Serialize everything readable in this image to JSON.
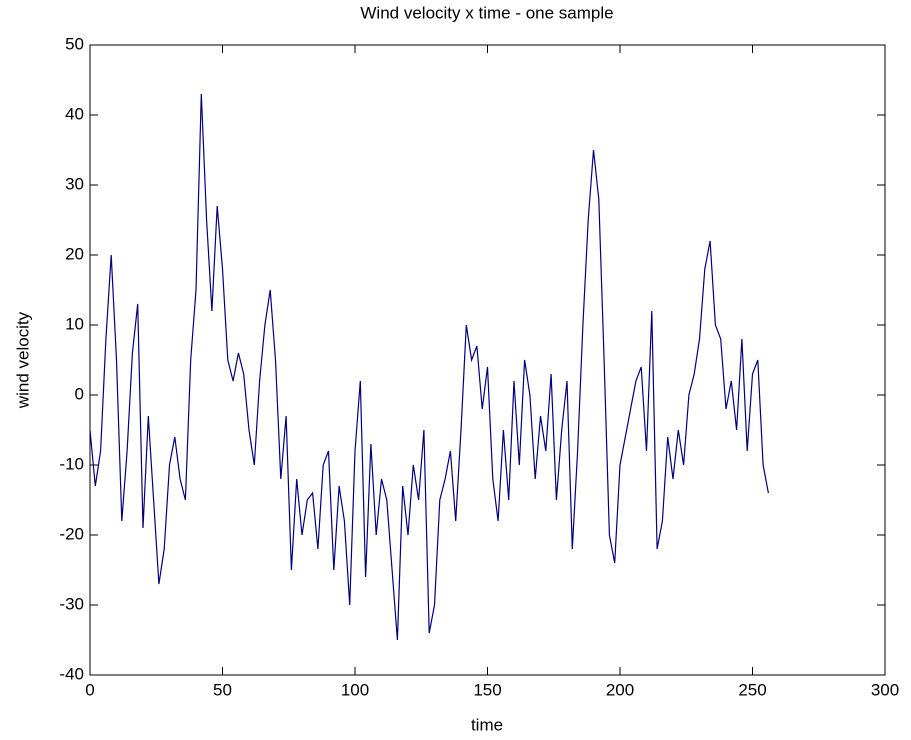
{
  "chart_data": {
    "type": "line",
    "title": "Wind velocity x time - one sample",
    "xlabel": "time",
    "ylabel": "wind velocity",
    "x": [
      0,
      2,
      4,
      6,
      8,
      10,
      12,
      14,
      16,
      18,
      20,
      22,
      24,
      26,
      28,
      30,
      32,
      34,
      36,
      38,
      40,
      42,
      44,
      46,
      48,
      50,
      52,
      54,
      56,
      58,
      60,
      62,
      64,
      66,
      68,
      70,
      72,
      74,
      76,
      78,
      80,
      82,
      84,
      86,
      88,
      90,
      92,
      94,
      96,
      98,
      100,
      102,
      104,
      106,
      108,
      110,
      112,
      114,
      116,
      118,
      120,
      122,
      124,
      126,
      128,
      130,
      132,
      134,
      136,
      138,
      140,
      142,
      144,
      146,
      148,
      150,
      152,
      154,
      156,
      158,
      160,
      162,
      164,
      166,
      168,
      170,
      172,
      174,
      176,
      178,
      180,
      182,
      184,
      186,
      188,
      190,
      192,
      194,
      196,
      198,
      200,
      202,
      204,
      206,
      208,
      210,
      212,
      214,
      216,
      218,
      220,
      222,
      224,
      226,
      228,
      230,
      232,
      234,
      236,
      238,
      240,
      242,
      244,
      246,
      248,
      250,
      252,
      254,
      256
    ],
    "series": [
      {
        "name": "wind velocity",
        "color": "#00007f",
        "values": [
          -5,
          -13,
          -8,
          8,
          20,
          5,
          -18,
          -8,
          6,
          13,
          -19,
          -3,
          -15,
          -27,
          -22,
          -10,
          -6,
          -12,
          -15,
          5,
          15,
          43,
          25,
          12,
          27,
          18,
          5,
          2,
          6,
          3,
          -5,
          -10,
          2,
          10,
          15,
          5,
          -12,
          -3,
          -25,
          -12,
          -20,
          -15,
          -14,
          -22,
          -10,
          -8,
          -25,
          -13,
          -18,
          -30,
          -8,
          2,
          -26,
          -7,
          -20,
          -12,
          -15,
          -25,
          -35,
          -13,
          -20,
          -10,
          -15,
          -5,
          -34,
          -30,
          -15,
          -12,
          -8,
          -18,
          -5,
          10,
          5,
          7,
          -2,
          4,
          -12,
          -18,
          -5,
          -15,
          2,
          -10,
          5,
          0,
          -12,
          -3,
          -8,
          3,
          -15,
          -5,
          2,
          -22,
          -8,
          10,
          25,
          35,
          28,
          5,
          -20,
          -24,
          -10,
          -6,
          -2,
          2,
          4,
          -8,
          12,
          -22,
          -18,
          -6,
          -12,
          -5,
          -10,
          0,
          3,
          8,
          18,
          22,
          10,
          8,
          -2,
          2,
          -5,
          8,
          -8,
          3,
          5,
          -10,
          -14
        ]
      }
    ],
    "xlim": [
      0,
      300
    ],
    "xticks": [
      0,
      50,
      100,
      150,
      200,
      250,
      300
    ],
    "ylim": [
      -40,
      50
    ],
    "yticks": [
      -40,
      -30,
      -20,
      -10,
      0,
      10,
      20,
      30,
      40,
      50
    ]
  }
}
